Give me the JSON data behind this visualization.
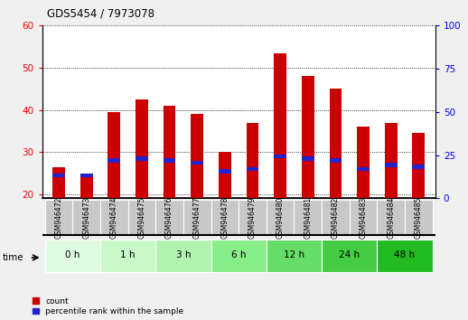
{
  "title": "GDS5454 / 7973078",
  "samples": [
    "GSM946472",
    "GSM946473",
    "GSM946474",
    "GSM946475",
    "GSM946476",
    "GSM946477",
    "GSM946478",
    "GSM946479",
    "GSM946480",
    "GSM946481",
    "GSM946482",
    "GSM946483",
    "GSM946484",
    "GSM946485"
  ],
  "count_values": [
    26.5,
    25.0,
    39.5,
    42.5,
    41.0,
    39.0,
    30.0,
    37.0,
    53.5,
    48.0,
    45.0,
    36.0,
    37.0,
    34.5
  ],
  "percentile_values": [
    24.5,
    24.5,
    28.0,
    28.5,
    28.0,
    27.5,
    25.5,
    26.0,
    29.0,
    28.5,
    28.0,
    26.0,
    27.0,
    26.5
  ],
  "ylim_left": [
    19,
    60
  ],
  "ylim_right": [
    0,
    100
  ],
  "yticks_left": [
    20,
    30,
    40,
    50,
    60
  ],
  "yticks_right": [
    0,
    25,
    50,
    75,
    100
  ],
  "bar_color": "#cc0000",
  "percentile_color": "#2222cc",
  "bar_width": 0.45,
  "time_groups_list": [
    [
      "0 h",
      0,
      2
    ],
    [
      "1 h",
      2,
      4
    ],
    [
      "3 h",
      4,
      6
    ],
    [
      "6 h",
      6,
      8
    ],
    [
      "12 h",
      8,
      10
    ],
    [
      "24 h",
      10,
      12
    ],
    [
      "48 h",
      12,
      14
    ]
  ],
  "time_bg_colors": [
    "#e0fce0",
    "#c8f8c8",
    "#b0f4b0",
    "#88ee88",
    "#66dd66",
    "#44cc44",
    "#22bb22"
  ],
  "fig_bg": "#f0f0f0",
  "plot_bg": "#ffffff",
  "xlabel": "time",
  "xtick_bg": "#c8c8c8"
}
